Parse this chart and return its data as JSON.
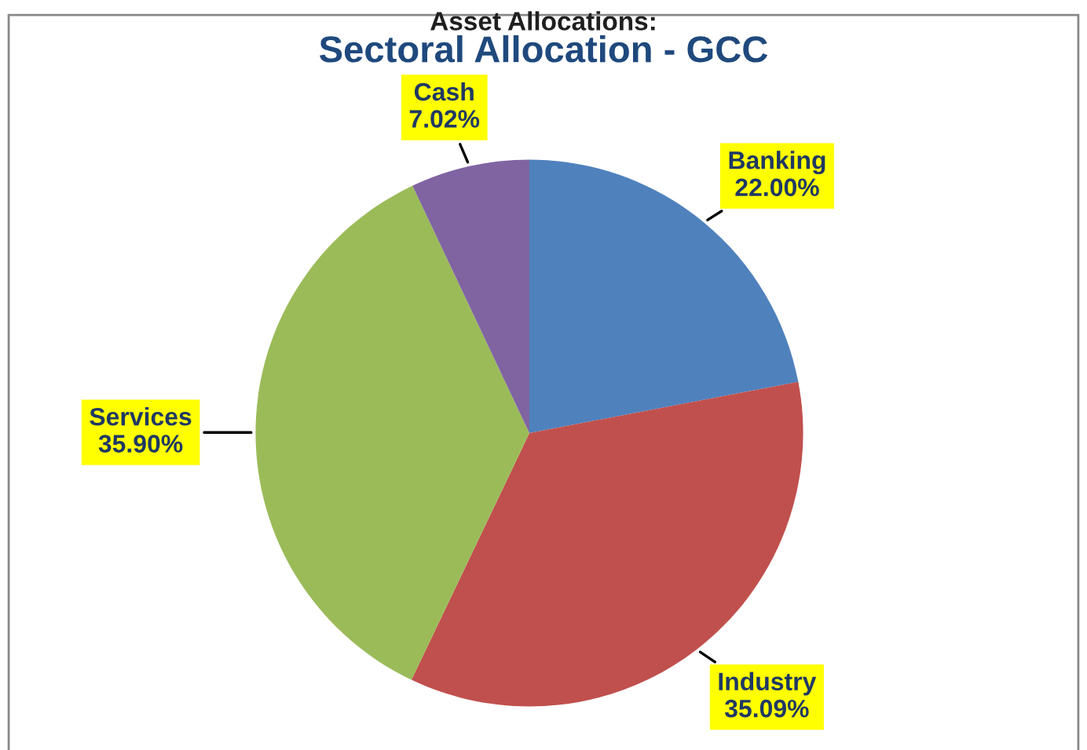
{
  "chart_data": {
    "type": "pie",
    "title": "Sectoral Allocation - GCC",
    "annotations": [
      "Asset Allocations:"
    ],
    "categories": [
      "Banking",
      "Industry",
      "Services",
      "Cash"
    ],
    "values": [
      22.0,
      35.09,
      35.9,
      7.02
    ],
    "value_labels": [
      "22.00%",
      "35.09%",
      "35.90%",
      "7.02%"
    ],
    "colors": [
      "#4f81bd",
      "#c0504d",
      "#9bbb59",
      "#8064a2"
    ],
    "legend": false
  }
}
